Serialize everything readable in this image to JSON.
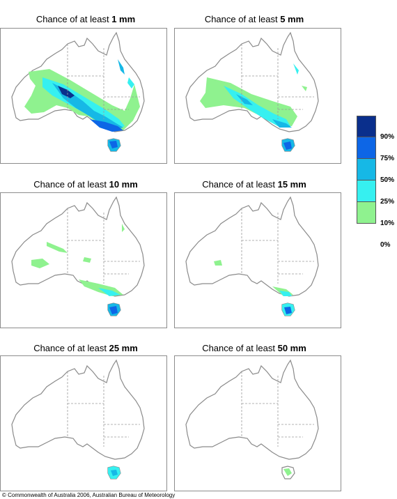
{
  "panels": [
    {
      "prefix": "Chance of at least ",
      "amount": "1 mm"
    },
    {
      "prefix": "Chance of at least ",
      "amount": "5 mm"
    },
    {
      "prefix": "Chance of at least ",
      "amount": "10 mm"
    },
    {
      "prefix": "Chance of at least ",
      "amount": "15 mm"
    },
    {
      "prefix": "Chance of at least ",
      "amount": "25 mm"
    },
    {
      "prefix": "Chance of at least ",
      "amount": "50 mm"
    }
  ],
  "legend": {
    "labels": [
      "90%",
      "75%",
      "50%",
      "25%",
      "10%",
      "0%"
    ],
    "colors": [
      "#0a2f8c",
      "#0d66e6",
      "#16b8e6",
      "#36f0f0",
      "#8ff28f",
      "#ffffff"
    ]
  },
  "colors": {
    "coast": "#8a8a8a",
    "border": "#9a9a9a"
  },
  "footer": "© Commonwealth of Australia 2006, Australian Bureau of Meteorology"
}
